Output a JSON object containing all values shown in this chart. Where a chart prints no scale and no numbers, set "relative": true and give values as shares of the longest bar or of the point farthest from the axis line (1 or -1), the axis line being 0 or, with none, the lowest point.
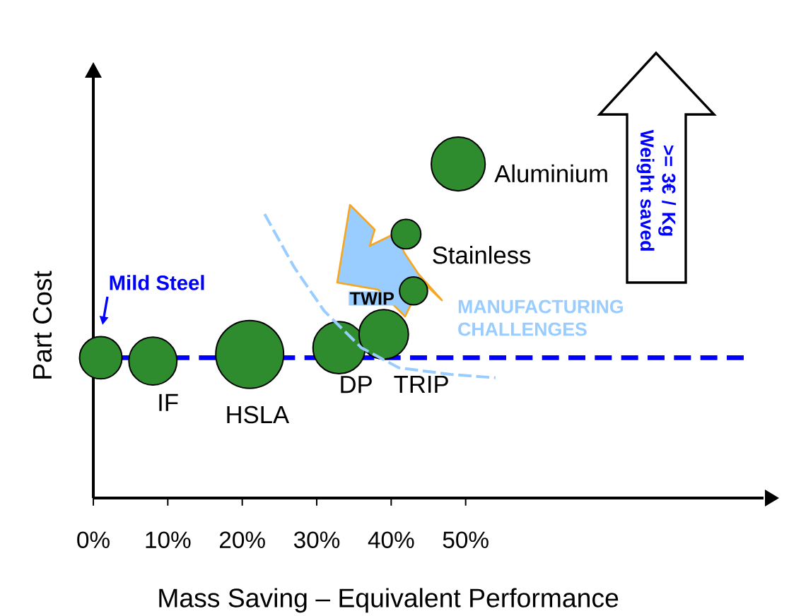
{
  "chart_data": {
    "type": "bubble",
    "relative": true,
    "xlabel": "Mass Saving – Equivalent Performance",
    "ylabel": "Part Cost",
    "x": [
      1,
      8,
      21,
      33,
      39,
      43,
      42,
      49
    ],
    "xlim": [
      0,
      90
    ],
    "xticks": [
      {
        "value": 0,
        "label": "0%"
      },
      {
        "value": 10,
        "label": "10%"
      },
      {
        "value": 20,
        "label": "20%"
      },
      {
        "value": 30,
        "label": "30%"
      },
      {
        "value": 40,
        "label": "40%"
      },
      {
        "value": 50,
        "label": "50%"
      }
    ],
    "marker": "circle",
    "series": [
      {
        "color": "#2e8b2e",
        "values": [
          0.42,
          0.41,
          0.43,
          0.45,
          0.49,
          0.62,
          0.79,
          1
        ],
        "sizes": [
          0.39,
          0.5,
          1,
          0.59,
          0.53,
          0.17,
          0.19,
          0.63
        ]
      },
      {
        "type": "line",
        "color": "#99ccff",
        "line_style": "dashed",
        "marker": "none",
        "x": [
          23,
          27,
          31,
          36,
          41,
          48,
          54
        ],
        "values": [
          0.85,
          0.69,
          0.56,
          0.45,
          0.39,
          0.37,
          0.36
        ]
      }
    ],
    "ref_lines": [
      {
        "axis": "y",
        "value": 0.42,
        "color": "#0000ff",
        "line_style": "dashed"
      }
    ],
    "annotations": [
      "Mild Steel",
      {
        "text": "IF",
        "x": 8,
        "y": 0.41
      },
      {
        "text": "HSLA",
        "x": 21,
        "y": 0.43
      },
      {
        "text": "DP",
        "x": 33,
        "y": 0.45
      },
      {
        "text": "TRIP",
        "x": 39,
        "y": 0.49
      },
      {
        "text": "TWIP",
        "x": 43,
        "y": 0.62
      },
      {
        "text": "Stainless",
        "x": 42,
        "y": 0.79
      },
      {
        "text": "Aluminium",
        "x": 49,
        "y": 1
      },
      "MANUFACTURING CHALLENGES",
      ">= 3€ / Kg Weight saved"
    ]
  }
}
